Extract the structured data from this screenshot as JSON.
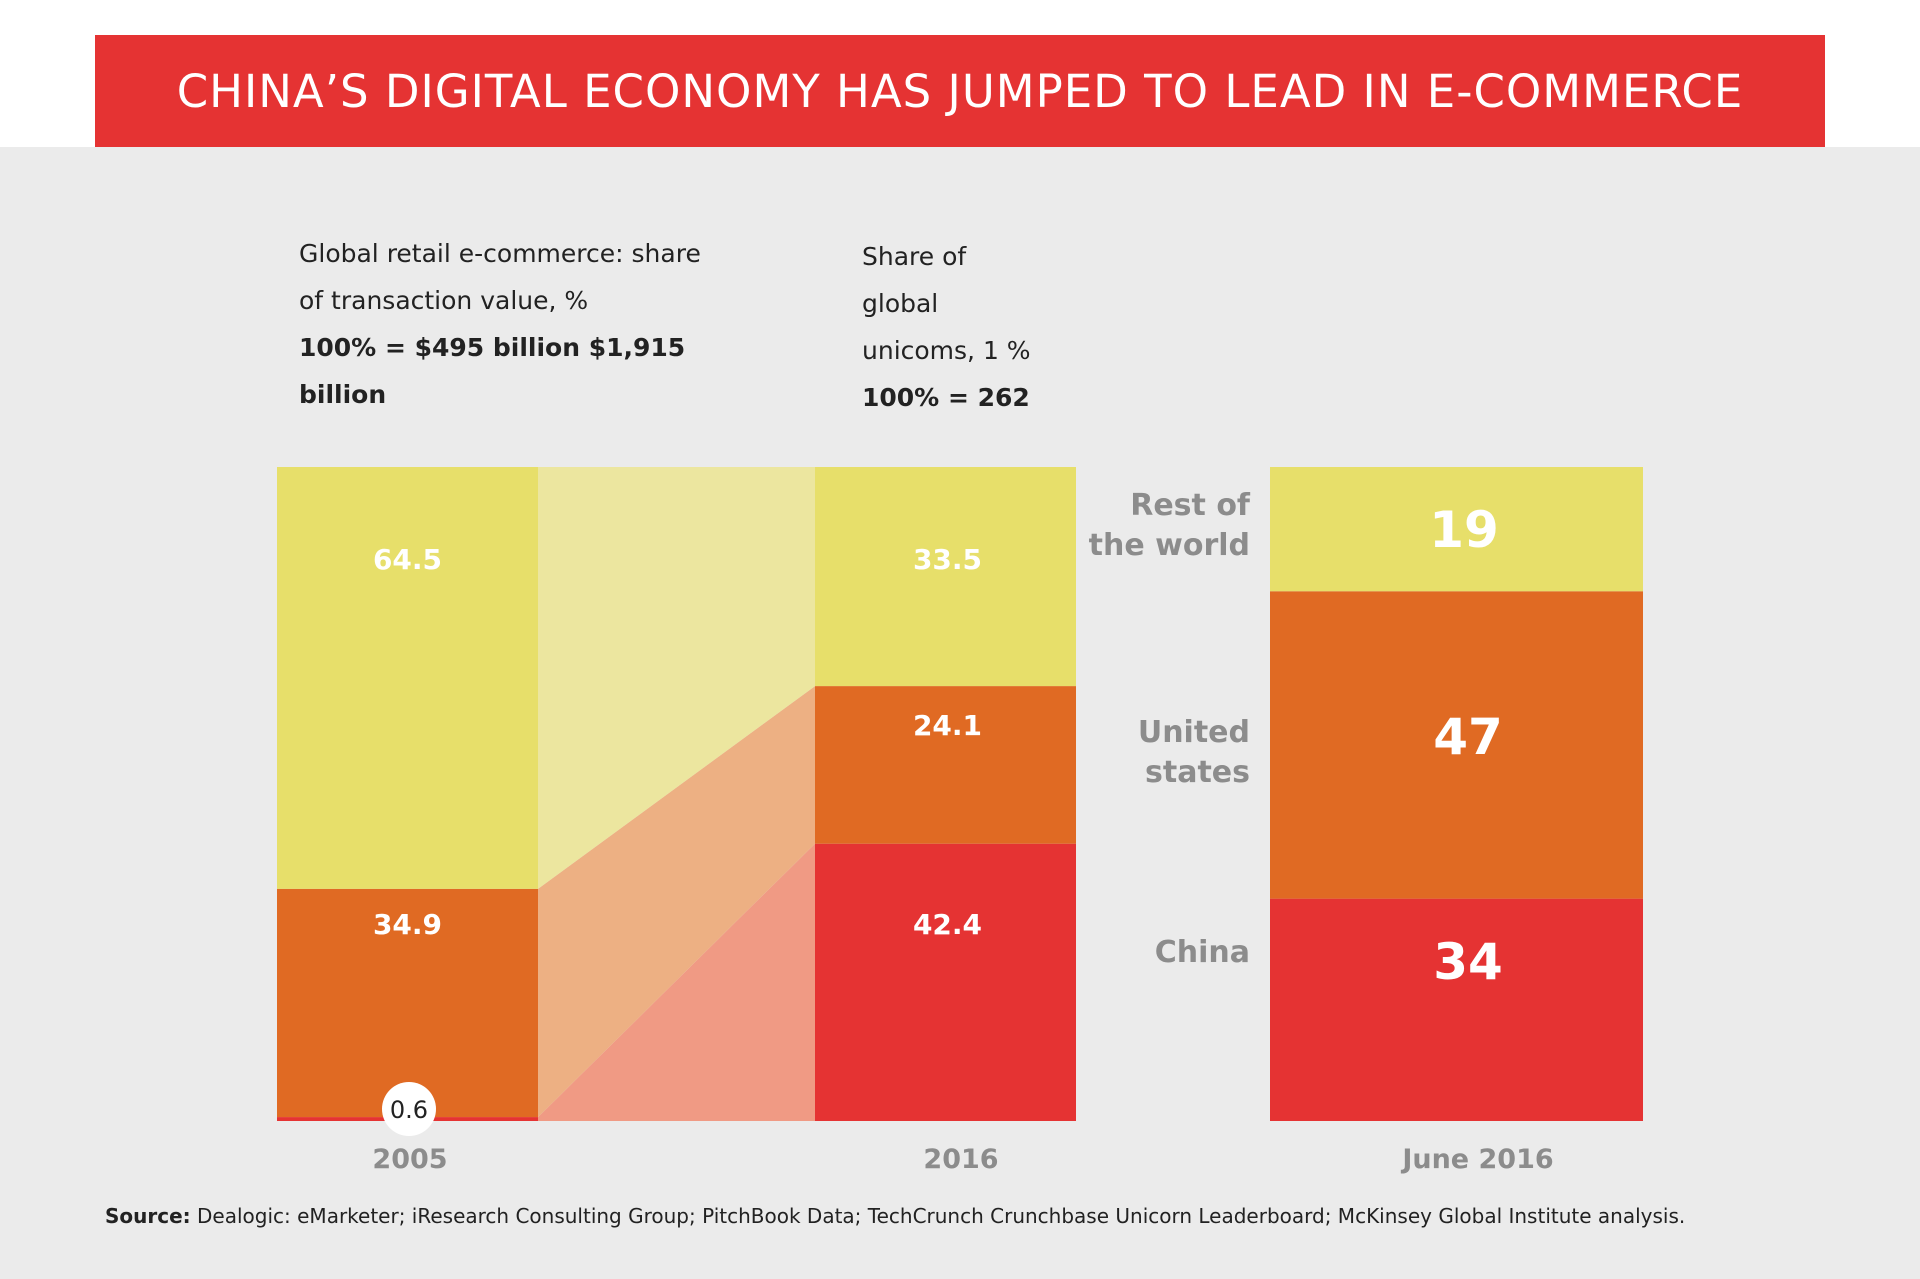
{
  "title": "CHINA’S DIGITAL ECONOMY HAS JUMPED  TO LEAD IN E-COMMERCE",
  "left_header": {
    "line1": "Global retail e-commerce: share",
    "line2": "of transaction value, %",
    "line3": "100% = $495 billion $1,915",
    "line4": "billion"
  },
  "right_header": {
    "line1": "Share of",
    "line2": "global",
    "line3": "unicoms, 1 %",
    "line4": "100% = 262"
  },
  "colors": {
    "rest_of_world": "#e7df6a",
    "united_states": "#e06a23",
    "china": "#e53333",
    "band_rest_of_world": "#ece69f",
    "band_united_states": "#edb083",
    "band_china": "#f09a84",
    "category_label": "#8c8c8c"
  },
  "chart_data": [
    {
      "type": "bar",
      "categories": [
        "2005",
        "2016"
      ],
      "series": [
        {
          "name": "China",
          "values": [
            0.6,
            42.4
          ]
        },
        {
          "name": "United states",
          "values": [
            34.9,
            24.1
          ]
        },
        {
          "name": "Rest of the world",
          "values": [
            64.5,
            33.5
          ]
        }
      ],
      "ylim": [
        0,
        100
      ]
    },
    {
      "type": "bar",
      "categories": [
        "June 2016"
      ],
      "series": [
        {
          "name": "China",
          "values": [
            34
          ]
        },
        {
          "name": "United states",
          "values": [
            47
          ]
        },
        {
          "name": "Rest of the world",
          "values": [
            19
          ]
        }
      ],
      "ylim": [
        0,
        100
      ]
    }
  ],
  "region_labels": {
    "rest_of_world": [
      "Rest of",
      "the world"
    ],
    "united_states": [
      "United",
      "states"
    ],
    "china": [
      "China"
    ]
  },
  "source": {
    "label": "Source:",
    "text": " Dealogic: eMarketer; iResearch Consulting  Group; PitchBook Data; TechCrunch Crunchbase Unicorn  Leaderboard; McKinsey Global Institute analysis."
  }
}
